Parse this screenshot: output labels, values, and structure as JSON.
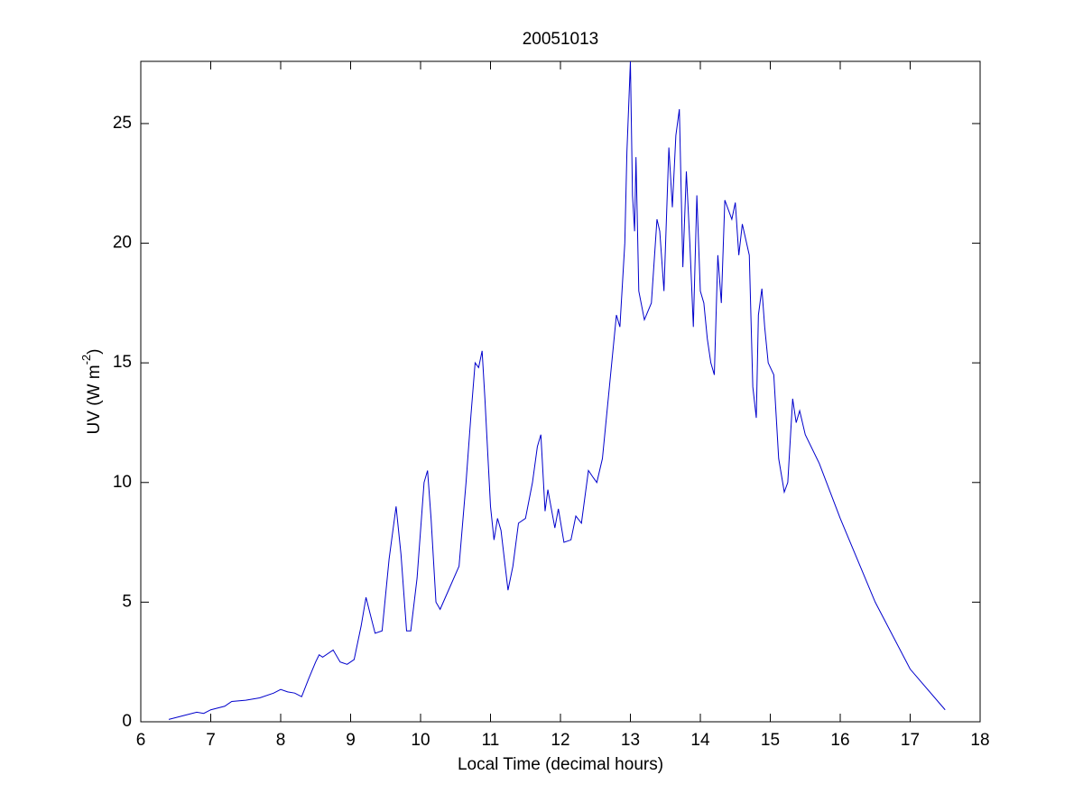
{
  "chart_data": {
    "type": "line",
    "title": "20051013",
    "xlabel": "Local Time (decimal hours)",
    "ylabel": "UV (W m",
    "ylabel_sup": "-2",
    "ylabel_end": ")",
    "color": "#0000cc",
    "xlim": [
      6,
      18
    ],
    "xticks": [
      6,
      7,
      8,
      9,
      10,
      11,
      12,
      13,
      14,
      15,
      16,
      17,
      18
    ],
    "ylim": [
      0,
      27.6
    ],
    "yticks": [
      0,
      5,
      10,
      15,
      20,
      25
    ],
    "x": [
      6.4,
      6.6,
      6.8,
      6.9,
      7.0,
      7.2,
      7.3,
      7.5,
      7.7,
      7.9,
      8.0,
      8.1,
      8.2,
      8.3,
      8.4,
      8.5,
      8.55,
      8.6,
      8.75,
      8.85,
      8.95,
      9.05,
      9.15,
      9.22,
      9.28,
      9.35,
      9.45,
      9.55,
      9.65,
      9.72,
      9.8,
      9.86,
      9.95,
      10.05,
      10.1,
      10.15,
      10.22,
      10.28,
      10.4,
      10.55,
      10.65,
      10.72,
      10.78,
      10.83,
      10.88,
      10.92,
      11.0,
      11.05,
      11.1,
      11.15,
      11.25,
      11.32,
      11.4,
      11.5,
      11.6,
      11.67,
      11.72,
      11.78,
      11.82,
      11.92,
      11.97,
      12.05,
      12.15,
      12.22,
      12.3,
      12.4,
      12.47,
      12.52,
      12.6,
      12.7,
      12.8,
      12.85,
      12.92,
      12.95,
      13.0,
      13.03,
      13.06,
      13.08,
      13.12,
      13.2,
      13.3,
      13.38,
      13.42,
      13.48,
      13.55,
      13.6,
      13.65,
      13.7,
      13.75,
      13.8,
      13.85,
      13.9,
      13.95,
      14.0,
      14.05,
      14.1,
      14.15,
      14.2,
      14.25,
      14.3,
      14.35,
      14.45,
      14.5,
      14.55,
      14.6,
      14.7,
      14.75,
      14.8,
      14.83,
      14.88,
      14.92,
      14.97,
      15.05,
      15.12,
      15.2,
      15.25,
      15.32,
      15.37,
      15.42,
      15.5,
      15.7,
      16.0,
      16.5,
      17.0,
      17.5
    ],
    "values": [
      0.1,
      0.25,
      0.4,
      0.35,
      0.5,
      0.65,
      0.85,
      0.9,
      1.0,
      1.2,
      1.35,
      1.25,
      1.2,
      1.05,
      1.8,
      2.5,
      2.8,
      2.7,
      3.0,
      2.5,
      2.4,
      2.6,
      4.0,
      5.2,
      4.5,
      3.7,
      3.8,
      6.8,
      9.0,
      7.0,
      3.8,
      3.8,
      6.0,
      10.0,
      10.5,
      8.5,
      5.0,
      4.7,
      5.5,
      6.5,
      10.0,
      12.8,
      15.0,
      14.8,
      15.5,
      13.5,
      9.0,
      7.6,
      8.5,
      8.0,
      5.5,
      6.5,
      8.3,
      8.5,
      10.0,
      11.5,
      12.0,
      8.8,
      9.7,
      8.1,
      8.9,
      7.5,
      7.6,
      8.6,
      8.3,
      10.5,
      10.2,
      10.0,
      11.0,
      14.0,
      17.0,
      16.5,
      20.0,
      23.8,
      27.6,
      22.0,
      20.5,
      23.6,
      18.0,
      16.8,
      17.5,
      21.0,
      20.5,
      18.0,
      24.0,
      21.5,
      24.5,
      25.6,
      19.0,
      23.0,
      20.0,
      16.5,
      22.0,
      18.0,
      17.5,
      16.0,
      15.0,
      14.5,
      19.5,
      17.5,
      21.8,
      21.0,
      21.7,
      19.5,
      20.8,
      19.5,
      14.0,
      12.7,
      17.0,
      18.1,
      16.5,
      15.0,
      14.5,
      11.0,
      9.6,
      10.0,
      13.5,
      12.5,
      13.0,
      12.0,
      10.8,
      8.5,
      5.0,
      2.2,
      0.5
    ]
  }
}
